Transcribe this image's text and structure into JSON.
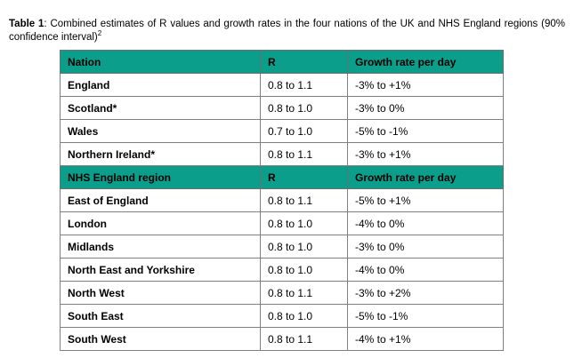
{
  "caption": {
    "label": "Table 1",
    "text": ": Combined estimates of R values and growth rates in the four nations of the UK and NHS England regions (90% confidence interval)",
    "footnote_ref": "2"
  },
  "colors": {
    "header_background": "#0a9e8b",
    "border": "#7f7f7f",
    "text": "#000000",
    "page_background": "#ffffff"
  },
  "table": {
    "sections": [
      {
        "header": [
          "Nation",
          "R",
          "Growth rate per day"
        ],
        "rows": [
          [
            "England",
            "0.8 to 1.1",
            "-3% to +1%"
          ],
          [
            "Scotland*",
            "0.8 to 1.0",
            "-3% to 0%"
          ],
          [
            "Wales",
            "0.7 to 1.0",
            "-5% to -1%"
          ],
          [
            "Northern Ireland*",
            "0.8 to 1.1",
            "-3% to +1%"
          ]
        ]
      },
      {
        "header": [
          "NHS England region",
          "R",
          "Growth rate per day"
        ],
        "rows": [
          [
            "East of England",
            "0.8 to 1.1",
            "-5% to +1%"
          ],
          [
            "London",
            "0.8 to 1.0",
            "-4% to 0%"
          ],
          [
            "Midlands",
            "0.8 to 1.0",
            "-3% to 0%"
          ],
          [
            "North East and Yorkshire",
            "0.8 to 1.0",
            "-4% to 0%"
          ],
          [
            "North West",
            "0.8 to 1.1",
            "-3% to +2%"
          ],
          [
            "South East",
            "0.8 to 1.0",
            "-5% to -1%"
          ],
          [
            "South West",
            "0.8 to 1.1",
            "-4% to +1%"
          ]
        ]
      }
    ]
  }
}
